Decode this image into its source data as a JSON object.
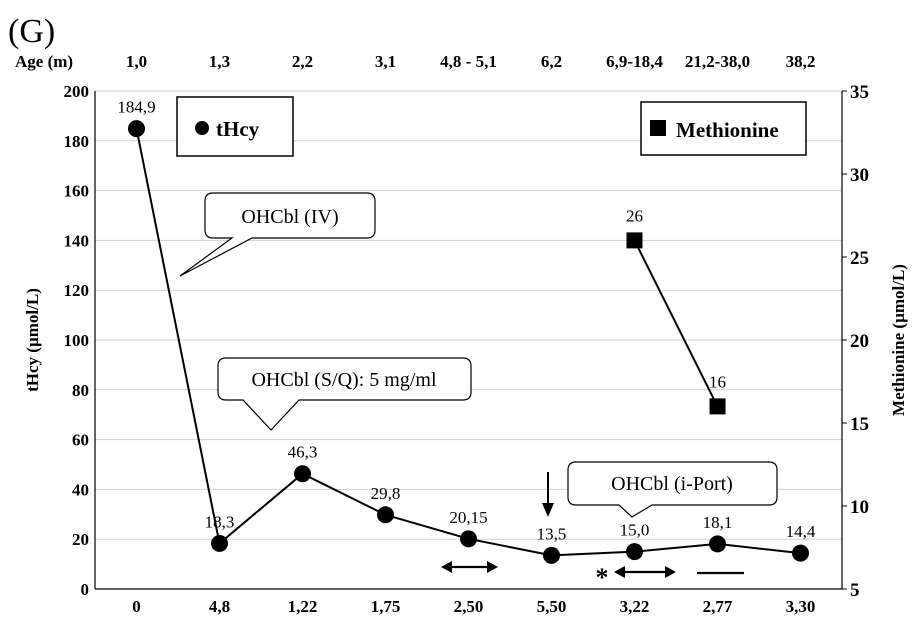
{
  "panel_label": "(G)",
  "age_row": {
    "label": "Age (m)",
    "values": [
      "1,0",
      "1,3",
      "2,2",
      "3,1",
      "4,8 - 5,1",
      "6,2",
      "6,9-18,4",
      "21,2-38,0",
      "38,2"
    ]
  },
  "callouts": {
    "iv": "OHCbl (IV)",
    "sq": "OHCbl (S/Q): 5 mg/ml",
    "iport": "OHCbl (i-Port)"
  },
  "asterisk": "*",
  "chart_data": {
    "type": "line",
    "categories": [
      "0",
      "4,8",
      "1,22",
      "1,75",
      "2,50",
      "5,50",
      "3,22",
      "2,77",
      "3,30"
    ],
    "series": [
      {
        "name": "tHcy",
        "axis": "left",
        "marker": "circle",
        "values": [
          184.9,
          18.3,
          46.3,
          29.8,
          20.15,
          13.5,
          15.0,
          18.1,
          14.4
        ],
        "data_labels": [
          "184,9",
          "18,3",
          "46,3",
          "29,8",
          "20,15",
          "13,5",
          "15,0",
          "18,1",
          "14,4"
        ]
      },
      {
        "name": "Methionine",
        "axis": "right",
        "marker": "square",
        "values": [
          null,
          null,
          null,
          null,
          null,
          null,
          26,
          16,
          null
        ],
        "data_labels": [
          null,
          null,
          null,
          null,
          null,
          null,
          "26",
          "16",
          null
        ]
      }
    ],
    "ylabel": "tHcy (µmol/L)",
    "ylim": [
      0,
      200
    ],
    "yticks": [
      "0",
      "20",
      "40",
      "60",
      "80",
      "100",
      "120",
      "140",
      "160",
      "180",
      "200"
    ],
    "y2label": "Methionine (µmol/L)",
    "y2lim": [
      5,
      35
    ],
    "y2ticks": [
      "5",
      "10",
      "15",
      "20",
      "25",
      "30",
      "35"
    ],
    "grid": "horizontal",
    "legend": "top-left and top-right boxes"
  }
}
